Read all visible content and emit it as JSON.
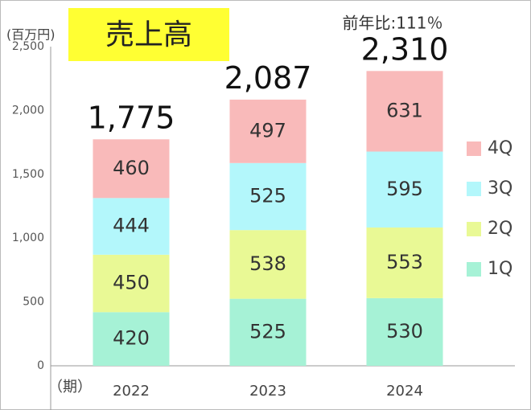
{
  "chart_data": {
    "type": "stacked_bar",
    "title": "売上高",
    "y_label": "(百万円)",
    "x_label": "（期）",
    "annotation": "前年比:111％",
    "categories": [
      "2022",
      "2023",
      "2024"
    ],
    "series": [
      {
        "name": "1Q",
        "color": "#a6f2d6",
        "values": [
          420,
          525,
          530
        ]
      },
      {
        "name": "2Q",
        "color": "#e9f995",
        "values": [
          450,
          538,
          553
        ]
      },
      {
        "name": "3Q",
        "color": "#b3f7fb",
        "values": [
          444,
          525,
          595
        ]
      },
      {
        "name": "4Q",
        "color": "#f9baba",
        "values": [
          460,
          497,
          631
        ]
      }
    ],
    "totals": {
      "values": [
        1775,
        2087,
        2310
      ],
      "value_labels": [
        "1,775",
        "2,087",
        "2,310"
      ]
    },
    "ylim": [
      0,
      2500
    ],
    "yticks": [
      0,
      500,
      {
        "value": 1000,
        "label": "1,000"
      },
      {
        "value": 1500,
        "label": "1,500"
      },
      {
        "value": 2000,
        "label": "2,000"
      },
      {
        "value": 2500,
        "label": "2,500"
      }
    ],
    "legend": "right"
  }
}
